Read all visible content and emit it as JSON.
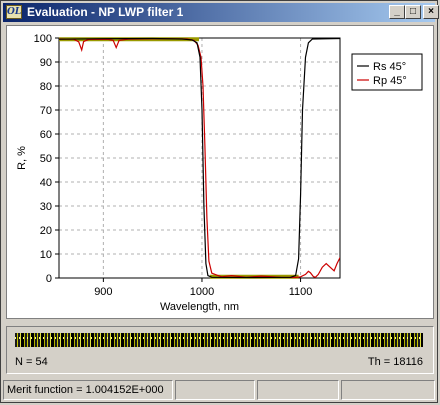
{
  "window": {
    "title": "Evaluation - NP LWP filter 1",
    "icon_text": "OL"
  },
  "title_buttons": {
    "minimize": "_",
    "maximize": "□",
    "close": "×"
  },
  "chart_data": {
    "type": "line",
    "xlabel": "Wavelength, nm",
    "ylabel": "R, %",
    "xlim": [
      855,
      1140
    ],
    "ylim": [
      0,
      100
    ],
    "x_ticks": [
      900,
      1000,
      1100
    ],
    "y_ticks": [
      0,
      10,
      20,
      30,
      40,
      50,
      60,
      70,
      80,
      90,
      100
    ],
    "grid": true,
    "legend_position": "top-right",
    "series": [
      {
        "name": "Rs 45°",
        "color": "#000000",
        "points": [
          [
            855,
            99.5
          ],
          [
            900,
            99.7
          ],
          [
            950,
            99.8
          ],
          [
            980,
            99.6
          ],
          [
            990,
            99.2
          ],
          [
            995,
            98
          ],
          [
            998,
            92
          ],
          [
            1000,
            70
          ],
          [
            1002,
            30
          ],
          [
            1004,
            6
          ],
          [
            1006,
            1
          ],
          [
            1010,
            0.3
          ],
          [
            1050,
            0.2
          ],
          [
            1090,
            0.3
          ],
          [
            1095,
            1
          ],
          [
            1098,
            8
          ],
          [
            1100,
            35
          ],
          [
            1102,
            70
          ],
          [
            1105,
            92
          ],
          [
            1108,
            98
          ],
          [
            1112,
            99.6
          ],
          [
            1140,
            99.8
          ]
        ]
      },
      {
        "name": "Rp 45°",
        "color": "#cc0000",
        "points": [
          [
            855,
            99.6
          ],
          [
            870,
            99.5
          ],
          [
            875,
            98.4
          ],
          [
            878,
            95
          ],
          [
            880,
            98.5
          ],
          [
            885,
            99.4
          ],
          [
            905,
            99.4
          ],
          [
            910,
            99
          ],
          [
            913,
            96
          ],
          [
            916,
            99
          ],
          [
            925,
            99.5
          ],
          [
            960,
            99.7
          ],
          [
            985,
            99.6
          ],
          [
            992,
            99
          ],
          [
            996,
            97
          ],
          [
            999,
            92
          ],
          [
            1001,
            80
          ],
          [
            1003,
            55
          ],
          [
            1005,
            25
          ],
          [
            1007,
            7
          ],
          [
            1010,
            2
          ],
          [
            1015,
            1.2
          ],
          [
            1020,
            0.5
          ],
          [
            1030,
            1
          ],
          [
            1045,
            0.3
          ],
          [
            1060,
            0.8
          ],
          [
            1080,
            0.3
          ],
          [
            1095,
            0.2
          ],
          [
            1100,
            0.5
          ],
          [
            1105,
            1.5
          ],
          [
            1108,
            2.8
          ],
          [
            1110,
            2.2
          ],
          [
            1113,
            0.6
          ],
          [
            1115,
            0.3
          ],
          [
            1118,
            1.5
          ],
          [
            1122,
            4.5
          ],
          [
            1126,
            6
          ],
          [
            1130,
            4.5
          ],
          [
            1134,
            3
          ],
          [
            1137,
            6
          ],
          [
            1140,
            8.5
          ]
        ]
      },
      {
        "name": "",
        "color": "#9a9a00",
        "stroke_width": 4,
        "points": [
          [
            855,
            99.5
          ],
          [
            997,
            99.5
          ]
        ]
      },
      {
        "name": "",
        "color": "#9a9a00",
        "stroke_width": 4,
        "points": [
          [
            1008,
            0.5
          ],
          [
            1098,
            0.5
          ]
        ]
      }
    ]
  },
  "strip": {
    "n_text": "N = 54",
    "th_text": "Th = 18116"
  },
  "status_bar": {
    "merit": "Merit function =  1.004152E+000",
    "cells": [
      "",
      "",
      "",
      ""
    ]
  }
}
